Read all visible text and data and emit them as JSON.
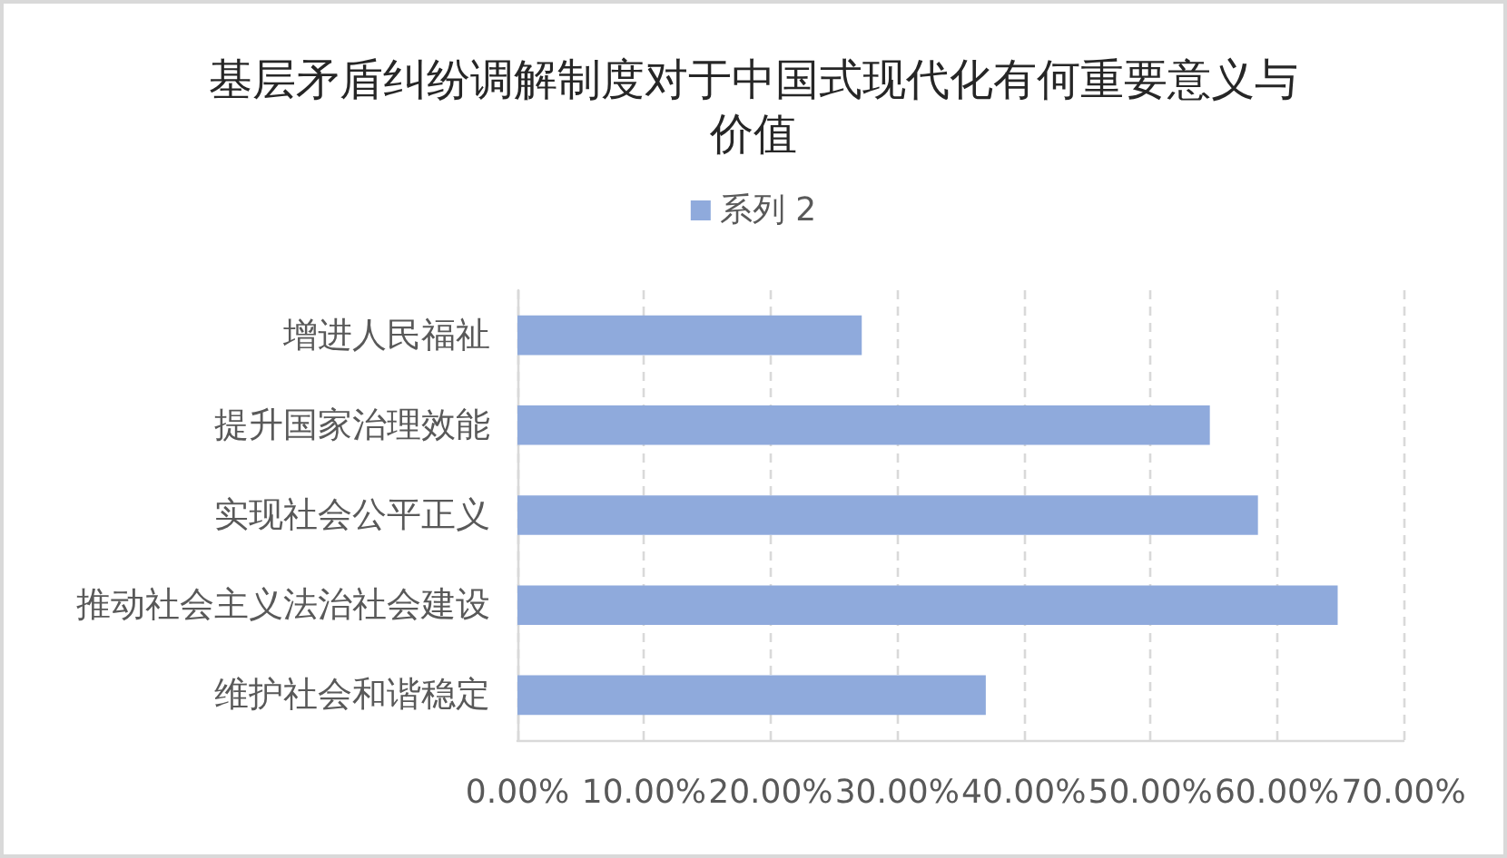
{
  "chart_data": {
    "type": "bar",
    "orientation": "horizontal",
    "title": "基层矛盾纠纷调解制度对于中国式现代化有何重要意义与价值",
    "categories": [
      "增进人民福祉",
      "提升国家治理效能",
      "实现社会公平正义",
      "推动社会主义法治社会建设",
      "维护社会和谐稳定"
    ],
    "series": [
      {
        "name": "系列 2",
        "color": "#8faadc",
        "values": [
          27.2,
          54.7,
          58.5,
          64.8,
          37.0
        ]
      }
    ],
    "xlim": [
      0,
      70
    ],
    "xticks": [
      {
        "value": 0,
        "label": "0.00%"
      },
      {
        "value": 10,
        "label": "10.00%"
      },
      {
        "value": 20,
        "label": "20.00%"
      },
      {
        "value": 30,
        "label": "30.00%"
      },
      {
        "value": 40,
        "label": "40.00%"
      },
      {
        "value": 50,
        "label": "50.00%"
      },
      {
        "value": 60,
        "label": "60.00%"
      },
      {
        "value": 70,
        "label": "70.00%"
      }
    ],
    "grid": "x",
    "legend": "top"
  }
}
